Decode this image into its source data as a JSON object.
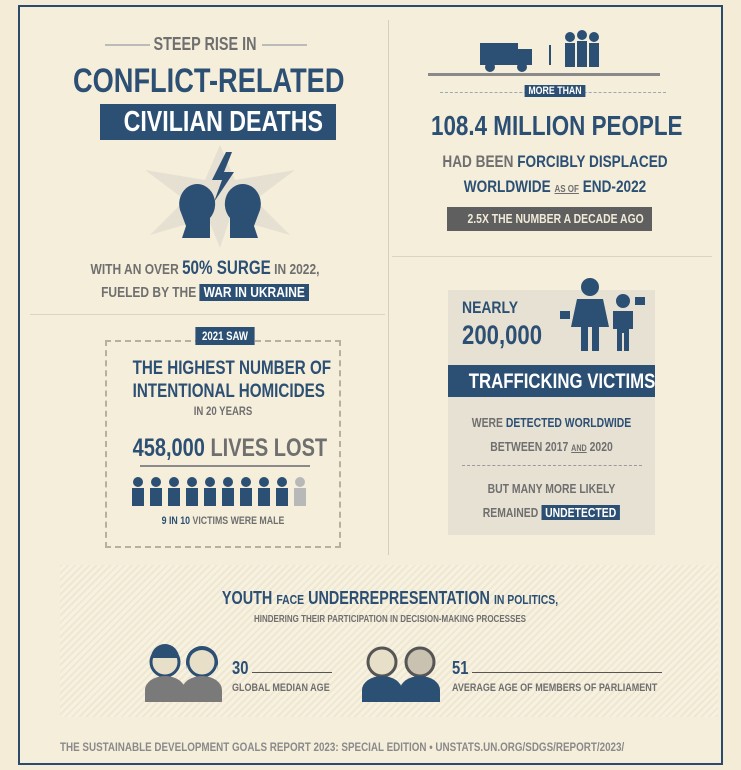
{
  "conflict": {
    "kicker": "STEEP RISE IN",
    "title_line1": "CONFLICT-RELATED",
    "title_line2": "CIVILIAN DEATHS",
    "line1": [
      "WITH AN OVER",
      "50% SURGE",
      "IN 2022,"
    ],
    "line2": [
      "FUELED BY THE",
      "WAR IN UKRAINE"
    ]
  },
  "displaced": {
    "badge": "MORE THAN",
    "headline": "108.4 MILLION PEOPLE",
    "line1": [
      "HAD BEEN",
      "FORCIBLY DISPLACED"
    ],
    "line2": [
      "WORLDWIDE",
      "AS OF",
      "END-2022"
    ],
    "note": "2.5X THE NUMBER A DECADE AGO"
  },
  "homicides": {
    "badge": "2021 SAW",
    "line1": "THE HIGHEST NUMBER OF",
    "line2": "INTENTIONAL HOMICIDES",
    "line3": "IN 20 YEARS",
    "figure": [
      "458,000",
      "LIVES LOST"
    ],
    "caption": [
      "9 IN 10",
      "VICTIMS WERE MALE"
    ]
  },
  "trafficking": {
    "lead": "NEARLY",
    "figure": "200,000",
    "banner": "TRAFFICKING VICTIMS",
    "line1": [
      "WERE",
      "DETECTED WORLDWIDE"
    ],
    "line2": [
      "BETWEEN 2017",
      "AND",
      "2020"
    ],
    "line3": "BUT MANY MORE LIKELY",
    "line4": [
      "REMAINED",
      "UNDETECTED"
    ]
  },
  "youth": {
    "title": [
      "YOUTH",
      "FACE",
      "UNDERREPRESENTATION",
      "IN POLITICS,"
    ],
    "subtitle": "HINDERING THEIR PARTICIPATION IN DECISION-MAKING PROCESSES",
    "stat1": {
      "value": "30",
      "label": "GLOBAL MEDIAN AGE"
    },
    "stat2": {
      "value": "51",
      "label": "AVERAGE AGE OF MEMBERS OF PARLIAMENT"
    }
  },
  "footer": [
    "THE SUSTAINABLE DEVELOPMENT GOALS REPORT 2023: SPECIAL EDITION",
    "UNSTATS.UN.ORG/SDGS/REPORT/2023/"
  ]
}
